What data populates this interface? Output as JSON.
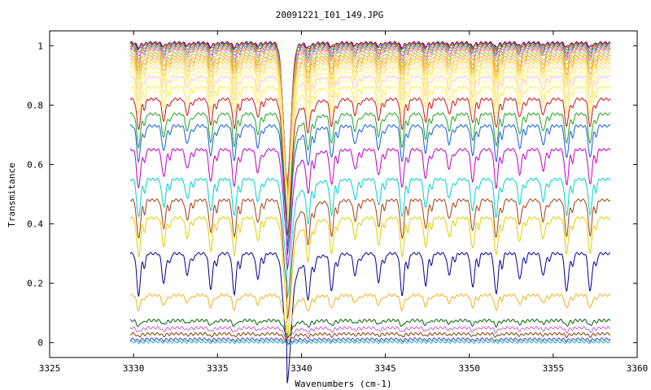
{
  "chart_data": {
    "type": "line",
    "title": "20091221_I01_149.JPG",
    "xlabel": "Wavenumbers (cm-1)",
    "ylabel": "Transmitance",
    "xlim": [
      3325,
      3360
    ],
    "ylim": [
      -0.05,
      1.05
    ],
    "x_ticks": [
      3325,
      3330,
      3335,
      3340,
      3345,
      3350,
      3355,
      3360
    ],
    "y_ticks": [
      0,
      0.2,
      0.4,
      0.6,
      0.8,
      1
    ],
    "x_tick_labels": [
      "3325",
      "3330",
      "3335",
      "3340",
      "3345",
      "3350",
      "3355",
      "3360"
    ],
    "y_tick_labels": [
      "0",
      "0.2",
      "0.4",
      "0.6",
      "0.8",
      "1"
    ],
    "grid": false,
    "legend": "none",
    "data_x_range": [
      3329.8,
      3358.4
    ],
    "absorption_lines_cm1": [
      3330.3,
      3331.8,
      3333.2,
      3334.6,
      3336.0,
      3337.4,
      3339.15,
      3340.4,
      3341.8,
      3343.2,
      3344.6,
      3346.0,
      3347.4,
      3348.8,
      3350.2,
      3351.6,
      3353.0,
      3354.4,
      3355.8,
      3357.2
    ],
    "series": [
      {
        "color": "#8b0000",
        "baseline": 1.01,
        "depth": 0.015
      },
      {
        "color": "#9400d3",
        "baseline": 1.008,
        "depth": 0.017
      },
      {
        "color": "#228b22",
        "baseline": 1.005,
        "depth": 0.02
      },
      {
        "color": "#ff4500",
        "baseline": 1.0,
        "depth": 0.025
      },
      {
        "color": "#1e90ff",
        "baseline": 0.995,
        "depth": 0.03
      },
      {
        "color": "#daa520",
        "baseline": 0.99,
        "depth": 0.035
      },
      {
        "color": "#ff69b4",
        "baseline": 0.985,
        "depth": 0.04
      },
      {
        "color": "#9acd32",
        "baseline": 0.975,
        "depth": 0.045
      },
      {
        "color": "#ffa500",
        "baseline": 0.965,
        "depth": 0.05
      },
      {
        "color": "#f4a460",
        "baseline": 0.955,
        "depth": 0.055
      },
      {
        "color": "#ffd700",
        "baseline": 0.945,
        "depth": 0.06
      },
      {
        "color": "#f5deb3",
        "baseline": 0.935,
        "depth": 0.065
      },
      {
        "color": "#ffe066",
        "baseline": 0.925,
        "depth": 0.07
      },
      {
        "color": "#ffff66",
        "baseline": 0.91,
        "depth": 0.075
      },
      {
        "color": "#ffc0cb",
        "baseline": 0.895,
        "depth": 0.08
      },
      {
        "color": "#ffff99",
        "baseline": 0.88,
        "depth": 0.085
      },
      {
        "color": "#ffeb3b",
        "baseline": 0.86,
        "depth": 0.09
      },
      {
        "color": "#fffacd",
        "baseline": 0.845,
        "depth": 0.095
      },
      {
        "color": "#d01010",
        "baseline": 0.82,
        "depth": 0.1
      },
      {
        "color": "#20a020",
        "baseline": 0.77,
        "depth": 0.11
      },
      {
        "color": "#1060d0",
        "baseline": 0.73,
        "depth": 0.12
      },
      {
        "color": "#c000c0",
        "baseline": 0.65,
        "depth": 0.13
      },
      {
        "color": "#00d0d0",
        "baseline": 0.55,
        "depth": 0.13
      },
      {
        "color": "#a04010",
        "baseline": 0.48,
        "depth": 0.13
      },
      {
        "color": "#e0d000",
        "baseline": 0.42,
        "depth": 0.13
      },
      {
        "color": "#000090",
        "baseline": 0.3,
        "depth": 0.14
      },
      {
        "color": "#f0b020",
        "baseline": 0.16,
        "depth": 0.05
      },
      {
        "color": "#006000",
        "baseline": 0.075,
        "depth": 0.02
      },
      {
        "color": "#d060d0",
        "baseline": 0.05,
        "depth": 0.015
      },
      {
        "color": "#804000",
        "baseline": 0.03,
        "depth": 0.01
      },
      {
        "color": "#4040c0",
        "baseline": 0.012,
        "depth": 0.005
      },
      {
        "color": "#20b0b0",
        "baseline": 0.003,
        "depth": 0.002
      }
    ]
  }
}
